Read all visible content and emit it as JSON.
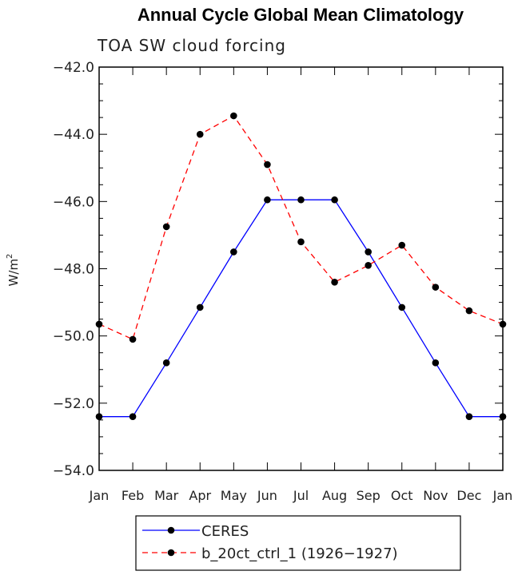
{
  "chart_data": {
    "type": "line",
    "title": "Annual Cycle Global Mean Climatology",
    "subtitle": "TOA SW cloud forcing",
    "ylabel": "W/m",
    "ylabel_sup": "2",
    "xlabel": "",
    "ylim": [
      -54.0,
      -42.0
    ],
    "yticks": [
      "-42.0",
      "-44.0",
      "-46.0",
      "-48.0",
      "-50.0",
      "-52.0",
      "-54.0"
    ],
    "categories": [
      "Jan",
      "Feb",
      "Mar",
      "Apr",
      "May",
      "Jun",
      "Jul",
      "Aug",
      "Sep",
      "Oct",
      "Nov",
      "Dec",
      "Jan"
    ],
    "grid": false,
    "legend_position": "bottom",
    "series": [
      {
        "name": "CERES",
        "color": "#0000ff",
        "dash": "solid",
        "values": [
          -52.4,
          -52.4,
          -50.8,
          -49.15,
          -47.5,
          -45.95,
          -45.95,
          -45.95,
          -47.5,
          -49.15,
          -50.8,
          -52.4,
          -52.4
        ]
      },
      {
        "name": "b_20ct_ctrl_1 (1926-1927)",
        "color": "#ff0000",
        "dash": "dashed",
        "values": [
          -49.65,
          -50.1,
          -46.75,
          -44.0,
          -43.45,
          -44.9,
          -47.2,
          -48.4,
          -47.9,
          -47.3,
          -48.55,
          -49.25,
          -49.65
        ]
      }
    ]
  }
}
